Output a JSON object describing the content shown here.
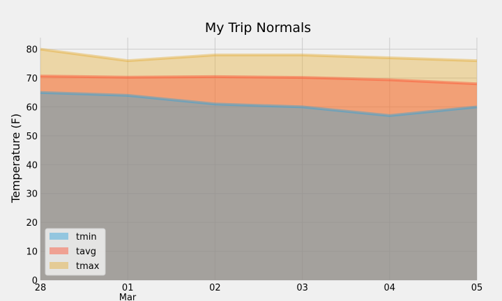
{
  "chart_data": {
    "type": "area",
    "title": "My Trip Normals",
    "xlabel": "",
    "ylabel": "Temperature (F)",
    "x_tick_labels": [
      "28",
      "01",
      "02",
      "03",
      "04",
      "05"
    ],
    "x_secondary_label": "Mar",
    "ylim": [
      0,
      84
    ],
    "y_ticks": [
      0,
      10,
      20,
      30,
      40,
      50,
      60,
      70,
      80
    ],
    "grid": true,
    "stacked": false,
    "legend_position": "lower-left",
    "series": [
      {
        "name": "tmin",
        "values": [
          65,
          64,
          61,
          60,
          57,
          60
        ],
        "color": "#30a2da"
      },
      {
        "name": "tavg",
        "values": [
          70.7,
          70.3,
          70.5,
          70.2,
          69.4,
          68.0
        ],
        "color": "#fc4f30"
      },
      {
        "name": "tmax",
        "values": [
          80,
          76,
          78,
          78,
          77,
          76
        ],
        "color": "#e5ae38"
      }
    ]
  }
}
